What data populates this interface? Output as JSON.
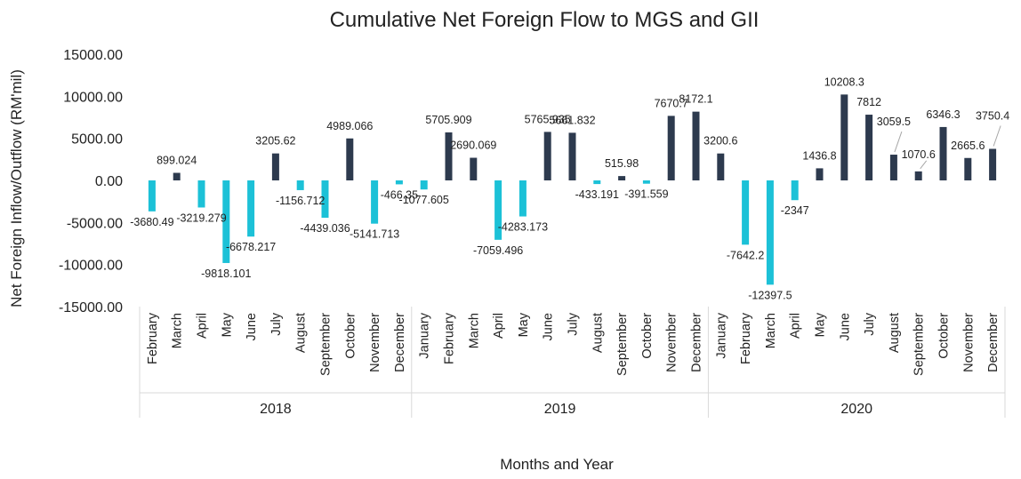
{
  "chart_data": {
    "type": "bar",
    "title": "Cumulative Net Foreign Flow to MGS and GII",
    "xlabel": "Months and Year",
    "ylabel": "Net Foreign Inflow/Outflow (RM'mil)",
    "ylim": [
      -15000,
      15000
    ],
    "y_ticks": [
      "15000.00",
      "10000.00",
      "5000.00",
      "0.00",
      "-5000.00",
      "-10000.00",
      "-15000.00"
    ],
    "grid": false,
    "colors": {
      "positive": "#2d3a4e",
      "negative": "#1cc1d7"
    },
    "groups": [
      {
        "label": "2018",
        "months": [
          "February",
          "March",
          "April",
          "May",
          "June",
          "July",
          "August",
          "September",
          "October",
          "November",
          "December"
        ]
      },
      {
        "label": "2019",
        "months": [
          "January",
          "February",
          "March",
          "April",
          "May",
          "June",
          "July",
          "August",
          "September",
          "October",
          "November",
          "December"
        ]
      },
      {
        "label": "2020",
        "months": [
          "January",
          "February",
          "March",
          "April",
          "May",
          "June",
          "July",
          "August",
          "September",
          "October",
          "November",
          "December"
        ]
      }
    ],
    "values": [
      -3680.49,
      899.024,
      -3219.279,
      -9818.101,
      -6678.217,
      3205.62,
      -1156.712,
      -4439.036,
      4989.066,
      -5141.713,
      -466.35,
      -1077.605,
      5705.909,
      2690.069,
      -7059.496,
      -4283.173,
      5765.935,
      5661.832,
      -433.191,
      515.98,
      -391.559,
      7670.7,
      8172.1,
      3200.6,
      -7642.2,
      -12397.5,
      -2347,
      1436.8,
      10208.3,
      7812,
      3059.5,
      1070.6,
      6346.3,
      2665.6,
      3750.4
    ],
    "data_labels": [
      "-3680.49",
      "899.024",
      "-3219.279",
      "-9818.101",
      "-6678.217",
      "3205.62",
      "-1156.712",
      "-4439.036",
      "4989.066",
      "-5141.713",
      "-466.35",
      "-1077.605",
      "5705.909",
      "2690.069",
      "-7059.496",
      "-4283.173",
      "5765.935",
      "5661.832",
      "-433.191",
      "515.98",
      "-391.559",
      "7670.7",
      "8172.1",
      "3200.6",
      "-7642.2",
      "-12397.5",
      "-2347",
      "1436.8",
      "10208.3",
      "7812",
      "3059.5",
      "1070.6",
      "6346.3",
      "2665.6",
      "3750.4"
    ]
  }
}
